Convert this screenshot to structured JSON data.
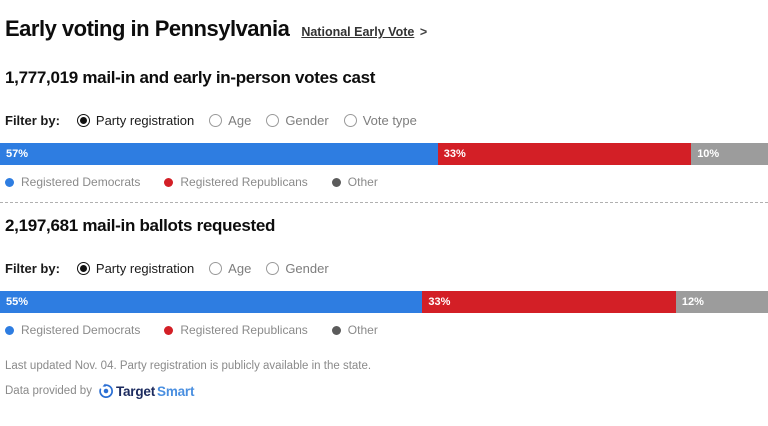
{
  "header": {
    "title": "Early voting in Pennsylvania",
    "link_label": "National Early Vote",
    "link_arrow": ">"
  },
  "colors": {
    "democrat": "#2e7de1",
    "republican": "#d31f26",
    "other_bar": "#9c9c9c",
    "other_dot": "#5b5b5b"
  },
  "sections": [
    {
      "headline": "1,777,019 mail-in and early in-person votes cast",
      "filter_label": "Filter by:",
      "filters": [
        {
          "label": "Party registration",
          "selected": true
        },
        {
          "label": "Age",
          "selected": false
        },
        {
          "label": "Gender",
          "selected": false
        },
        {
          "label": "Vote type",
          "selected": false
        }
      ],
      "chart": {
        "segments": [
          {
            "label": "57%",
            "value": 57,
            "color": "democrat"
          },
          {
            "label": "33%",
            "value": 33,
            "color": "republican"
          },
          {
            "label": "10%",
            "value": 10,
            "color": "other_bar"
          }
        ]
      },
      "legend": [
        {
          "label": "Registered Democrats",
          "color": "democrat"
        },
        {
          "label": "Registered Republicans",
          "color": "republican"
        },
        {
          "label": "Other",
          "color": "other_dot"
        }
      ]
    },
    {
      "headline": "2,197,681 mail-in ballots requested",
      "filter_label": "Filter by:",
      "filters": [
        {
          "label": "Party registration",
          "selected": true
        },
        {
          "label": "Age",
          "selected": false
        },
        {
          "label": "Gender",
          "selected": false
        }
      ],
      "chart": {
        "segments": [
          {
            "label": "55%",
            "value": 55,
            "color": "democrat"
          },
          {
            "label": "33%",
            "value": 33,
            "color": "republican"
          },
          {
            "label": "12%",
            "value": 12,
            "color": "other_bar"
          }
        ]
      },
      "legend": [
        {
          "label": "Registered Democrats",
          "color": "democrat"
        },
        {
          "label": "Registered Republicans",
          "color": "republican"
        },
        {
          "label": "Other",
          "color": "other_dot"
        }
      ]
    }
  ],
  "footer": {
    "note": "Last updated Nov. 04. Party registration is publicly available in the state.",
    "provider_prefix": "Data provided by",
    "logo_target": "Target",
    "logo_smart": "Smart"
  },
  "chart_data": [
    {
      "type": "bar",
      "stacked": true,
      "orientation": "horizontal",
      "title": "1,777,019 mail-in and early in-person votes cast",
      "categories": [
        "Registered Democrats",
        "Registered Republicans",
        "Other"
      ],
      "values": [
        57,
        33,
        10
      ],
      "unit": "%",
      "xlim": [
        0,
        100
      ],
      "colors": [
        "#2e7de1",
        "#d31f26",
        "#9c9c9c"
      ],
      "legend_position": "bottom",
      "grid": false
    },
    {
      "type": "bar",
      "stacked": true,
      "orientation": "horizontal",
      "title": "2,197,681 mail-in ballots requested",
      "categories": [
        "Registered Democrats",
        "Registered Republicans",
        "Other"
      ],
      "values": [
        55,
        33,
        12
      ],
      "unit": "%",
      "xlim": [
        0,
        100
      ],
      "colors": [
        "#2e7de1",
        "#d31f26",
        "#9c9c9c"
      ],
      "legend_position": "bottom",
      "grid": false
    }
  ]
}
